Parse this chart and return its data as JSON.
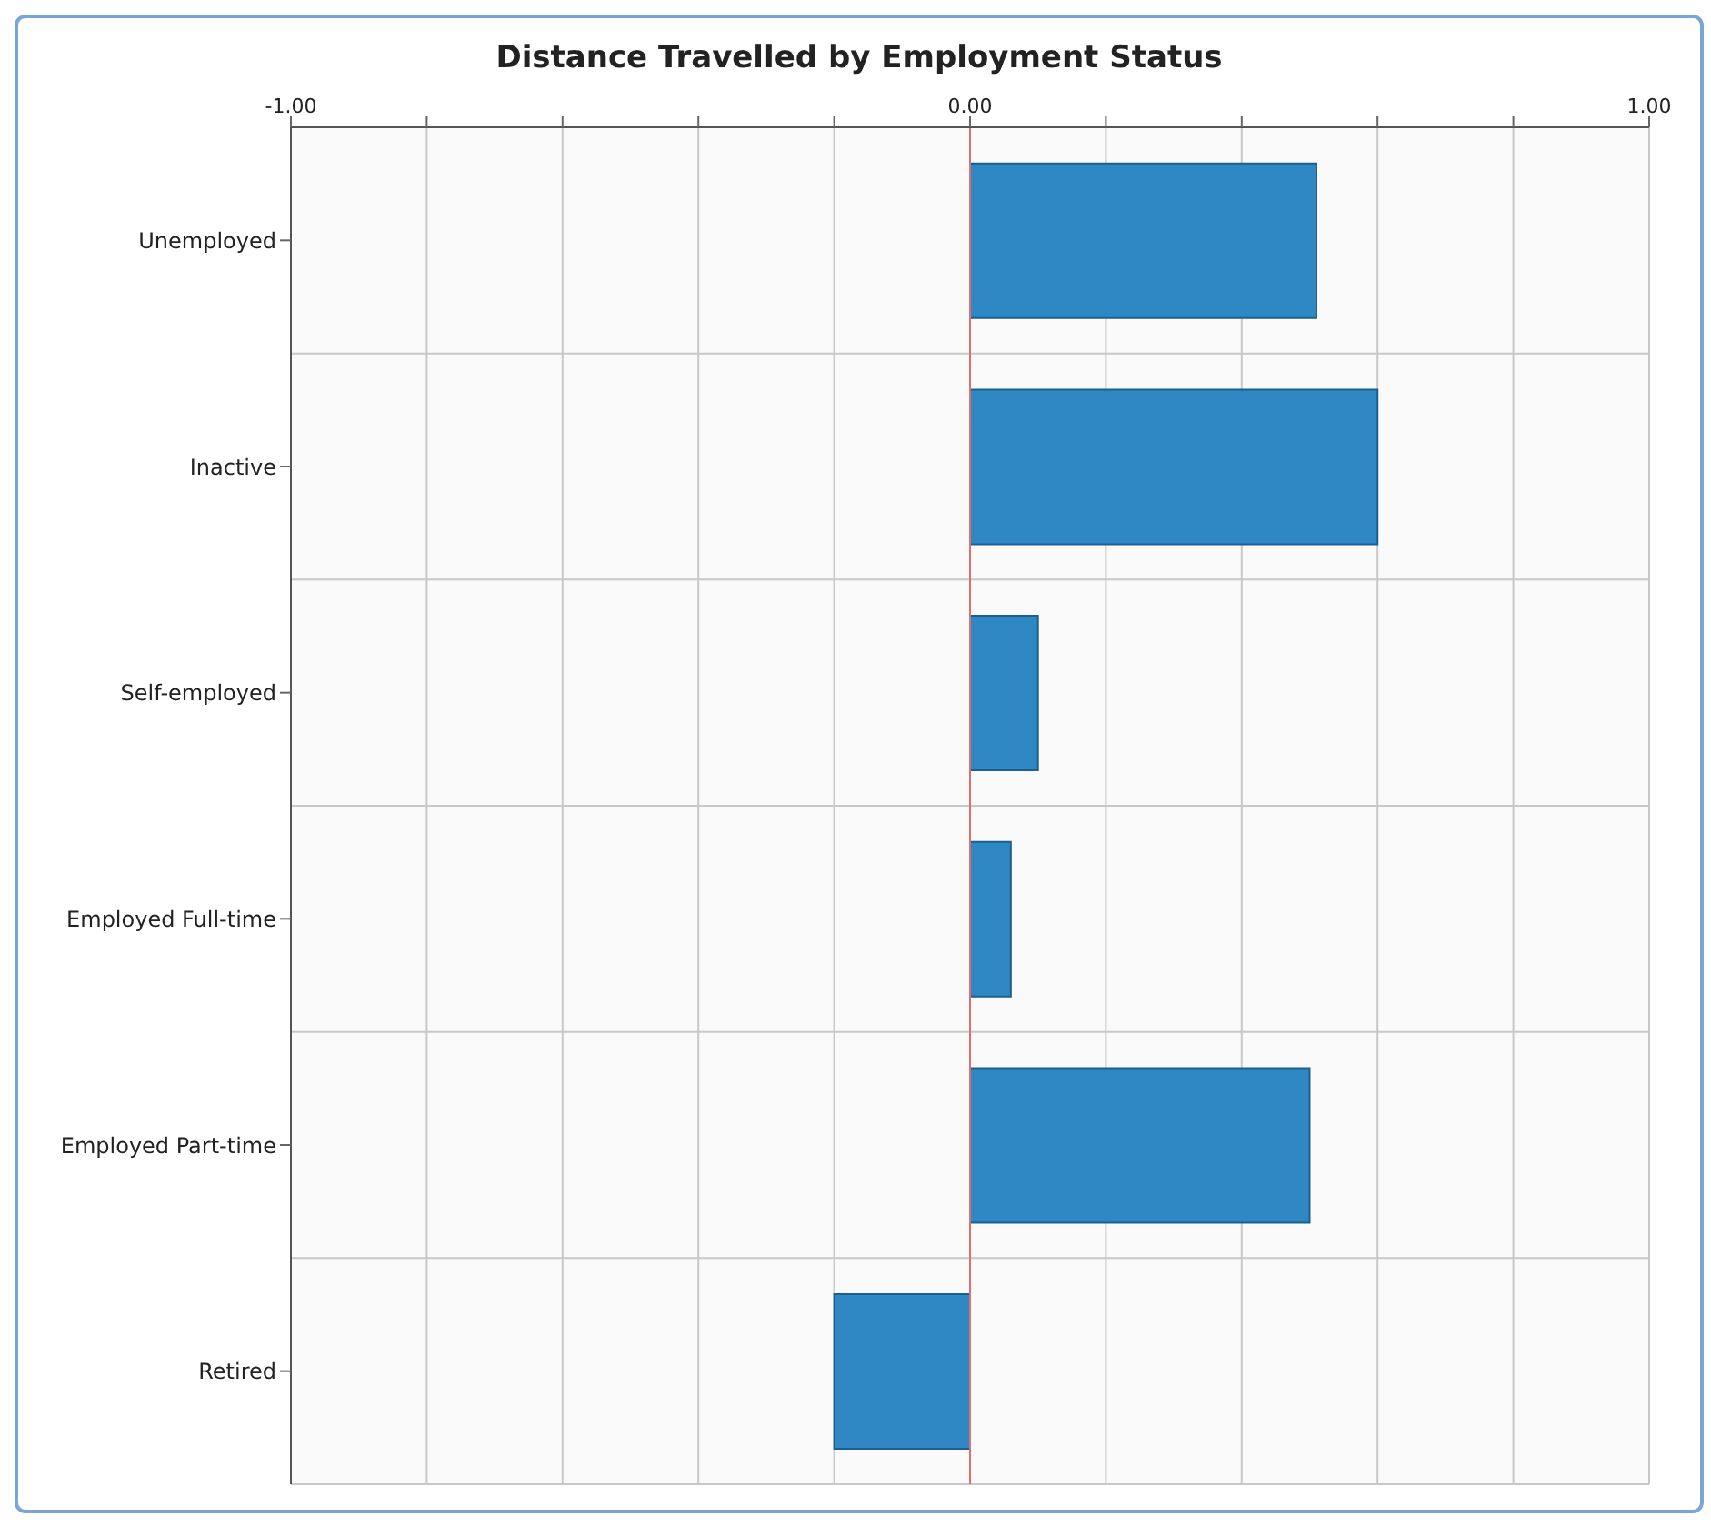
{
  "chart_data": {
    "type": "bar",
    "orientation": "horizontal",
    "title": "Distance Travelled by Employment Status",
    "categories": [
      "Unemployed",
      "Inactive",
      "Self-employed",
      "Employed Full-time",
      "Employed Part-time",
      "Retired"
    ],
    "values": [
      0.51,
      0.6,
      0.1,
      0.06,
      0.5,
      -0.2
    ],
    "color": "#2f87c4",
    "xlim": [
      -1,
      1
    ],
    "xticks": [
      {
        "value": -1,
        "label": "-1.00"
      },
      {
        "value": -0.8,
        "label": null
      },
      {
        "value": -0.6,
        "label": null
      },
      {
        "value": -0.4,
        "label": null
      },
      {
        "value": -0.2,
        "label": null
      },
      {
        "value": 0,
        "label": "0.00"
      },
      {
        "value": 0.2,
        "label": null
      },
      {
        "value": 0.4,
        "label": null
      },
      {
        "value": 0.6,
        "label": null
      },
      {
        "value": 0.8,
        "label": null
      },
      {
        "value": 1,
        "label": "1.00"
      }
    ],
    "ref_lines": [
      {
        "axis": "x",
        "value": 0,
        "color": "#e07070"
      }
    ],
    "grid": true
  }
}
